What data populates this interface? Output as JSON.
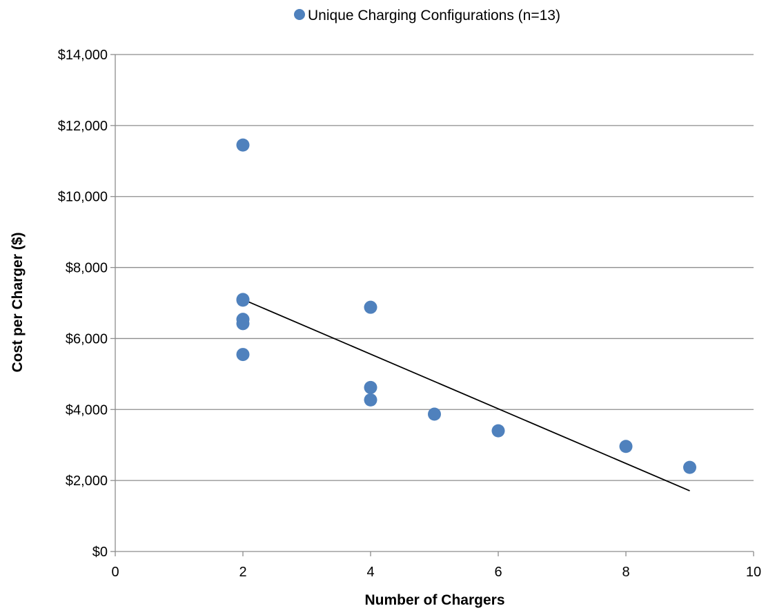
{
  "chart_data": {
    "type": "scatter",
    "title": "",
    "xlabel": "Number of Chargers",
    "ylabel": "Cost per Charger ($)",
    "xlim": [
      0,
      10
    ],
    "ylim": [
      0,
      14000
    ],
    "x_ticks": [
      0,
      2,
      4,
      6,
      8,
      10
    ],
    "y_ticks": [
      0,
      2000,
      4000,
      6000,
      8000,
      10000,
      12000,
      14000
    ],
    "y_tick_labels": [
      "$0",
      "$2,000",
      "$4,000",
      "$6,000",
      "$8,000",
      "$10,000",
      "$12,000",
      "$14,000"
    ],
    "grid": "horizontal",
    "legend_position": "top",
    "series": [
      {
        "name": "Unique Charging Configurations (n=13)",
        "color": "#4f81bd",
        "points": [
          {
            "x": 2,
            "y": 11450
          },
          {
            "x": 2,
            "y": 7100
          },
          {
            "x": 2,
            "y": 7080
          },
          {
            "x": 2,
            "y": 6540
          },
          {
            "x": 2,
            "y": 6420
          },
          {
            "x": 2,
            "y": 5550
          },
          {
            "x": 4,
            "y": 6880
          },
          {
            "x": 4,
            "y": 4620
          },
          {
            "x": 4,
            "y": 4270
          },
          {
            "x": 5,
            "y": 3870
          },
          {
            "x": 6,
            "y": 3400
          },
          {
            "x": 8,
            "y": 2960
          },
          {
            "x": 9,
            "y": 2370
          }
        ]
      }
    ],
    "trendline": {
      "type": "linear",
      "color": "#000000",
      "x": [
        2,
        9
      ],
      "y": [
        7100,
        1710
      ]
    }
  }
}
